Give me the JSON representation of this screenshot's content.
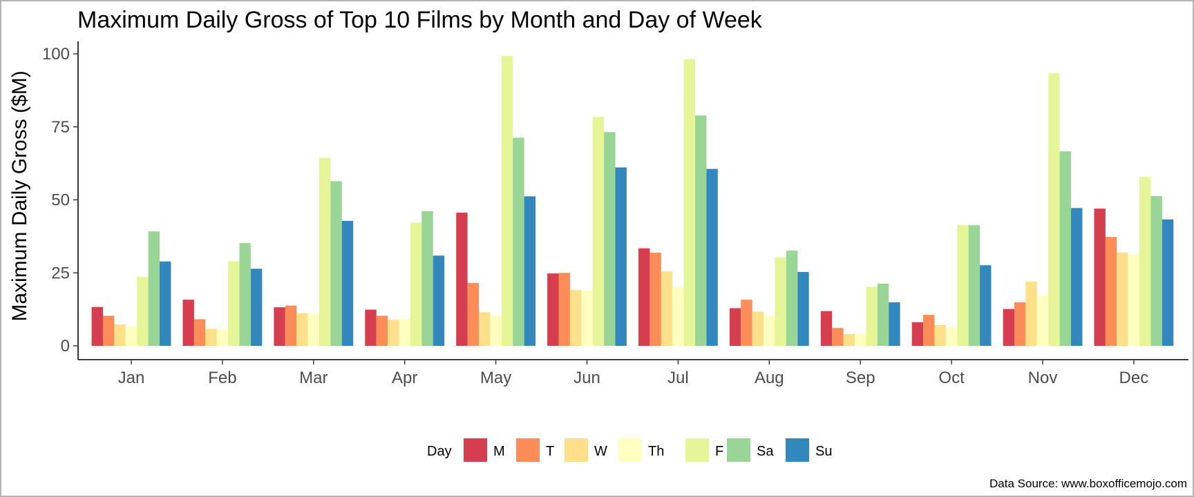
{
  "chart_data": {
    "type": "bar",
    "title": "Maximum Daily Gross of Top 10 Films by Month and Day of Week",
    "xlabel": "",
    "ylabel": "Maximum Daily Gross ($M)",
    "ylim": [
      0,
      100
    ],
    "y_ticks": [
      "0",
      "25",
      "50",
      "75",
      "100"
    ],
    "grid": false,
    "legend_position": "bottom",
    "legend_title": "Day",
    "caption": "Data Source: www.boxofficemojo.com",
    "categories": [
      "Jan",
      "Feb",
      "Mar",
      "Apr",
      "May",
      "Jun",
      "Jul",
      "Aug",
      "Sep",
      "Oct",
      "Nov",
      "Dec"
    ],
    "series": [
      {
        "name": "M",
        "color": "#d53e4f",
        "values": [
          13.3,
          15.8,
          13.2,
          12.4,
          45.6,
          24.8,
          33.4,
          12.9,
          11.9,
          8.1,
          12.6,
          47.0
        ]
      },
      {
        "name": "T",
        "color": "#fc8d59",
        "values": [
          10.3,
          9.1,
          13.8,
          10.3,
          21.5,
          25.0,
          31.9,
          15.8,
          6.1,
          10.6,
          14.9,
          37.3
        ]
      },
      {
        "name": "W",
        "color": "#fee08b",
        "values": [
          7.3,
          5.8,
          11.2,
          8.9,
          11.5,
          19.1,
          25.5,
          11.7,
          4.0,
          7.1,
          22.0,
          32.0
        ]
      },
      {
        "name": "Th",
        "color": "#ffffbf",
        "values": [
          6.6,
          5.6,
          10.9,
          9.2,
          10.3,
          18.9,
          20.0,
          10.3,
          4.2,
          6.2,
          17.3,
          31.2
        ]
      },
      {
        "name": "F",
        "color": "#e6f598",
        "values": [
          23.6,
          28.9,
          64.4,
          42.2,
          99.3,
          78.4,
          98.2,
          30.3,
          20.2,
          41.3,
          93.3,
          57.8
        ]
      },
      {
        "name": "Sa",
        "color": "#99d594",
        "values": [
          39.2,
          35.2,
          56.4,
          46.1,
          71.3,
          73.2,
          78.9,
          32.6,
          21.3,
          41.3,
          66.6,
          51.3
        ]
      },
      {
        "name": "Su",
        "color": "#3288bd",
        "values": [
          28.9,
          26.4,
          42.8,
          30.9,
          51.2,
          61.1,
          60.6,
          25.3,
          14.9,
          27.6,
          47.2,
          43.3
        ]
      }
    ]
  }
}
